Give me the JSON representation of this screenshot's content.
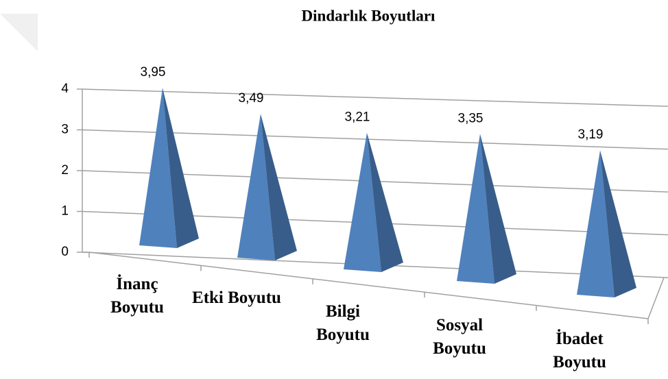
{
  "chart_data": {
    "type": "bar",
    "title": "Dindarlık Boyutları",
    "categories": [
      "İnanç Boyutu",
      "Etki Boyutu",
      "Bilgi Boyutu",
      "Sosyal Boyutu",
      "İbadet Boyutu"
    ],
    "values": [
      3.95,
      3.49,
      3.21,
      3.35,
      3.19
    ],
    "value_labels": [
      "3,95",
      "3,49",
      "3,21",
      "3,35",
      "3,19"
    ],
    "color": "#4f81bd",
    "ylim": [
      0,
      4
    ],
    "yticks": [
      0,
      1,
      2,
      3,
      4
    ],
    "grid": true
  }
}
